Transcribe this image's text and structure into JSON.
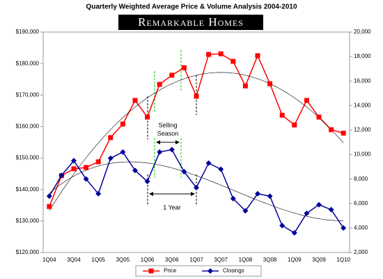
{
  "chart_data": {
    "type": "line",
    "title": "Quarterly Weighted Average Price & Volume Analysis 2004-2010",
    "logo": "Remarkable Homes",
    "annotations": [
      "Selling",
      "Season",
      "1 Year"
    ],
    "categories": [
      "1Q04",
      null,
      "3Q04",
      null,
      "1Q05",
      null,
      "3Q05",
      null,
      "1Q06",
      null,
      "3Q06",
      null,
      "1Q07",
      null,
      "3Q07",
      null,
      "1Q08",
      null,
      "3Q08",
      null,
      "1Q09",
      null,
      "3Q09",
      null,
      "1Q10"
    ],
    "series": [
      {
        "name": "Price",
        "color": "#ff0000",
        "marker": "square",
        "values": [
          134600,
          144400,
          146600,
          147000,
          148800,
          156500,
          160800,
          168300,
          163000,
          173400,
          176300,
          178700,
          169600,
          182900,
          183100,
          180700,
          172900,
          182500,
          173600,
          163600,
          160500,
          168300,
          163000,
          159000,
          157900
        ]
      },
      {
        "name": "Closings",
        "color": "#000099",
        "marker": "diamond",
        "axis": "y2",
        "values": [
          6600,
          8300,
          9500,
          8000,
          6800,
          9700,
          10200,
          8700,
          7800,
          10200,
          10400,
          8600,
          7300,
          9300,
          8800,
          6400,
          5400,
          6800,
          6600,
          4200,
          3600,
          5200,
          5900,
          5500,
          4000
        ]
      }
    ],
    "ylim": [
      120000,
      190000
    ],
    "yticks": [
      {
        "value": 120000,
        "label": "$120,000"
      },
      {
        "value": 130000,
        "label": "$130,000"
      },
      {
        "value": 140000,
        "label": "$140,000"
      },
      {
        "value": 150000,
        "label": "$150,000"
      },
      {
        "value": 160000,
        "label": "$160,000"
      },
      {
        "value": 170000,
        "label": "$170,000"
      },
      {
        "value": 180000,
        "label": "$180,000"
      },
      {
        "value": 190000,
        "label": "$190,000"
      }
    ],
    "y2lim": [
      2000,
      20000
    ],
    "y2ticks": [
      {
        "value": 2000,
        "label": "2,000"
      },
      {
        "value": 4000,
        "label": "4,000"
      },
      {
        "value": 6000,
        "label": "6,000"
      },
      {
        "value": 8000,
        "label": "8,000"
      },
      {
        "value": 10000,
        "label": "10,000"
      },
      {
        "value": 12000,
        "label": "12,000"
      },
      {
        "value": 14000,
        "label": "14,000"
      },
      {
        "value": 16000,
        "label": "16,000"
      },
      {
        "value": 18000,
        "label": "18,000"
      },
      {
        "value": 20000,
        "label": "20,000"
      }
    ],
    "trendline": true,
    "legend": "bottom"
  }
}
